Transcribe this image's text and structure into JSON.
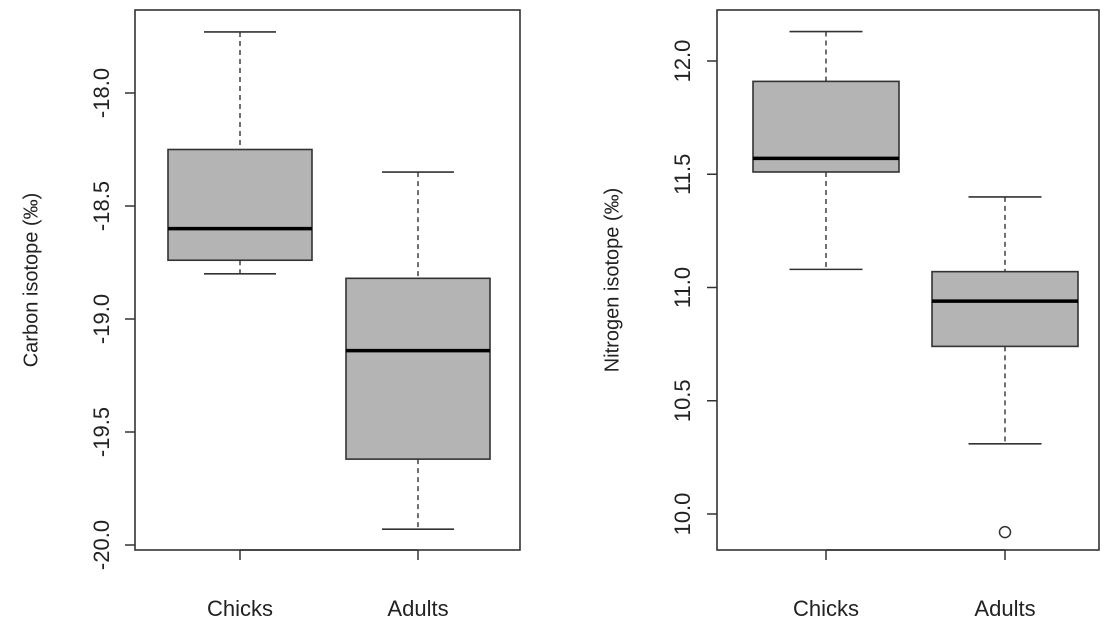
{
  "chart_data": [
    {
      "type": "boxplot",
      "ylabel": "Carbon isotope (‰)",
      "ylim": [
        -20.0,
        -17.7
      ],
      "yticks": [
        "-18.0",
        "-18.5",
        "-19.0",
        "-19.5",
        "-20.0"
      ],
      "categories": [
        "Chicks",
        "Adults"
      ],
      "boxes": [
        {
          "name": "Chicks",
          "whisker_low": -18.8,
          "q1": -18.74,
          "median": -18.6,
          "q3": -18.25,
          "whisker_high": -17.73,
          "outliers": []
        },
        {
          "name": "Adults",
          "whisker_low": -19.93,
          "q1": -19.62,
          "median": -19.14,
          "q3": -18.82,
          "whisker_high": -18.35,
          "outliers": []
        }
      ],
      "box_color": "#b4b4b4"
    },
    {
      "type": "boxplot",
      "ylabel": "Nitrogen isotope (‰)",
      "ylim": [
        9.9,
        12.15
      ],
      "yticks": [
        "10.0",
        "10.5",
        "11.0",
        "11.5",
        "12.0"
      ],
      "categories": [
        "Chicks",
        "Adults"
      ],
      "boxes": [
        {
          "name": "Chicks",
          "whisker_low": 11.08,
          "q1": 11.51,
          "median": 11.57,
          "q3": 11.91,
          "whisker_high": 12.13,
          "outliers": []
        },
        {
          "name": "Adults",
          "whisker_low": 10.31,
          "q1": 10.74,
          "median": 10.94,
          "q3": 11.07,
          "whisker_high": 11.4,
          "outliers": [
            9.92
          ]
        }
      ],
      "box_color": "#b4b4b4"
    }
  ]
}
